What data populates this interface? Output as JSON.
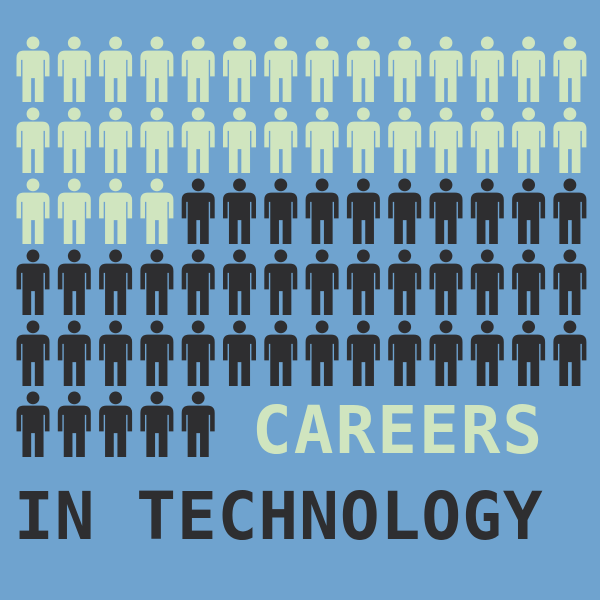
{
  "headline": {
    "line1": "CAREERS",
    "line2": "IN TECHNOLOGY"
  },
  "pictogram": {
    "icon": "person-icon",
    "columns": 14,
    "rows": [
      14,
      14,
      14,
      14,
      14,
      5
    ],
    "light_count": 32,
    "dark_count": 43,
    "light_color": "#d0e5bf",
    "dark_color": "#2e2e30"
  },
  "colors": {
    "background": "#6fa3cf",
    "headline_line1": "#d0e5bf",
    "headline_line2": "#2e2e30"
  }
}
